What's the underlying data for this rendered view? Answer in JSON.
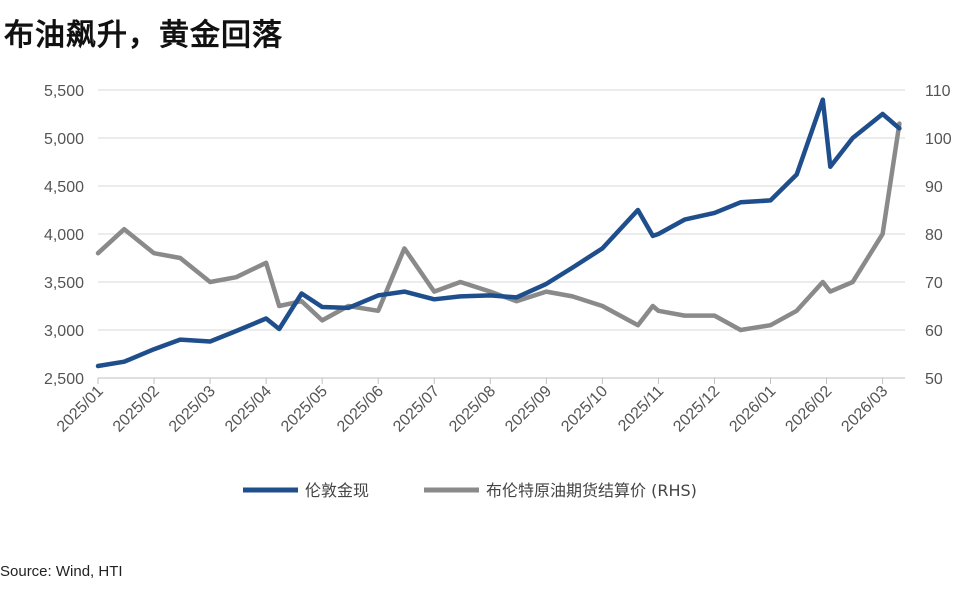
{
  "title": "布油飙升，黄金回落",
  "source": "Source: Wind, HTI",
  "chart_data": {
    "type": "line",
    "legend_position": "bottom",
    "grid": true,
    "x_ticks": [
      "2025/01",
      "2025/02",
      "2025/03",
      "2025/04",
      "2025/05",
      "2025/06",
      "2025/07",
      "2025/08",
      "2025/09",
      "2025/10",
      "2025/11",
      "2025/12",
      "2026/01",
      "2026/02",
      "2026/03"
    ],
    "xlim": [
      "2025/01",
      "2026/03"
    ],
    "y_left": {
      "lim": [
        2500,
        5500
      ],
      "ticks": [
        "2,500",
        "3,000",
        "3,500",
        "4,000",
        "4,500",
        "5,000",
        "5,500"
      ]
    },
    "y_right": {
      "lim": [
        50,
        110
      ],
      "ticks": [
        "50",
        "60",
        "70",
        "80",
        "90",
        "100",
        "110"
      ]
    },
    "series": [
      {
        "name": "伦敦金现",
        "axis": "left",
        "color": "#1f4e8c",
        "points": [
          [
            "2025/01",
            2625
          ],
          [
            "2025/01/15",
            2670
          ],
          [
            "2025/02",
            2800
          ],
          [
            "2025/02/15",
            2900
          ],
          [
            "2025/03",
            2880
          ],
          [
            "2025/03/15",
            2990
          ],
          [
            "2025/04",
            3120
          ],
          [
            "2025/04/08",
            3010
          ],
          [
            "2025/04/20",
            3380
          ],
          [
            "2025/05",
            3240
          ],
          [
            "2025/05/15",
            3230
          ],
          [
            "2025/06",
            3360
          ],
          [
            "2025/06/15",
            3400
          ],
          [
            "2025/07",
            3320
          ],
          [
            "2025/07/15",
            3350
          ],
          [
            "2025/08",
            3360
          ],
          [
            "2025/08/15",
            3340
          ],
          [
            "2025/09",
            3480
          ],
          [
            "2025/09/15",
            3650
          ],
          [
            "2025/10",
            3850
          ],
          [
            "2025/10/20",
            4250
          ],
          [
            "2025/10/28",
            3980
          ],
          [
            "2025/11",
            4000
          ],
          [
            "2025/11/15",
            4150
          ],
          [
            "2025/12",
            4220
          ],
          [
            "2025/12/15",
            4330
          ],
          [
            "2026/01",
            4350
          ],
          [
            "2026/01/15",
            4620
          ],
          [
            "2026/01/29",
            5400
          ],
          [
            "2026/02/03",
            4700
          ],
          [
            "2026/02/15",
            5000
          ],
          [
            "2026/03",
            5250
          ],
          [
            "2026/03/10",
            5100
          ]
        ]
      },
      {
        "name": "布伦特原油期货结算价 (RHS)",
        "axis": "right",
        "color": "#8a8a8a",
        "points": [
          [
            "2025/01",
            76
          ],
          [
            "2025/01/15",
            81
          ],
          [
            "2025/02",
            76
          ],
          [
            "2025/02/15",
            75
          ],
          [
            "2025/03",
            70
          ],
          [
            "2025/03/15",
            71
          ],
          [
            "2025/04",
            74
          ],
          [
            "2025/04/08",
            65
          ],
          [
            "2025/04/20",
            66
          ],
          [
            "2025/05",
            62
          ],
          [
            "2025/05/15",
            65
          ],
          [
            "2025/06",
            64
          ],
          [
            "2025/06/15",
            77
          ],
          [
            "2025/07",
            68
          ],
          [
            "2025/07/15",
            70
          ],
          [
            "2025/08",
            68
          ],
          [
            "2025/08/15",
            66
          ],
          [
            "2025/09",
            68
          ],
          [
            "2025/09/15",
            67
          ],
          [
            "2025/10",
            65
          ],
          [
            "2025/10/20",
            61
          ],
          [
            "2025/10/28",
            65
          ],
          [
            "2025/11",
            64
          ],
          [
            "2025/11/15",
            63
          ],
          [
            "2025/12",
            63
          ],
          [
            "2025/12/15",
            60
          ],
          [
            "2026/01",
            61
          ],
          [
            "2026/01/15",
            64
          ],
          [
            "2026/01/29",
            70
          ],
          [
            "2026/02/03",
            68
          ],
          [
            "2026/02/15",
            70
          ],
          [
            "2026/03",
            80
          ],
          [
            "2026/03/10",
            103
          ]
        ]
      }
    ]
  }
}
